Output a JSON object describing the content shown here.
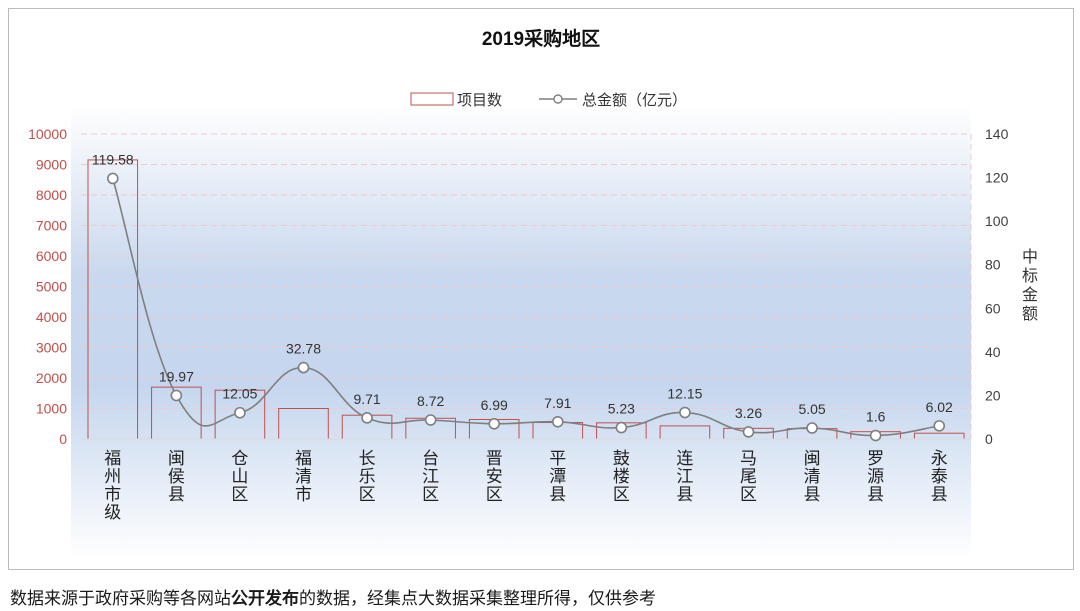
{
  "chart_data": {
    "type": "bar",
    "title": "2019采购地区",
    "categories": [
      "福州市级",
      "闽侯县",
      "仓山区",
      "福清市",
      "长乐区",
      "台江区",
      "晋安区",
      "平潭县",
      "鼓楼区",
      "连江县",
      "马尾区",
      "闽清县",
      "罗源县",
      "永泰县"
    ],
    "series": [
      {
        "name": "项目数",
        "type": "bar",
        "axis": "left",
        "values": [
          9150,
          1700,
          1600,
          1000,
          780,
          680,
          640,
          540,
          530,
          430,
          350,
          340,
          240,
          190
        ]
      },
      {
        "name": "总金额（亿元）",
        "type": "line",
        "axis": "right",
        "smooth": true,
        "marker": "hollow-circle",
        "values": [
          119.58,
          19.97,
          12.05,
          32.78,
          9.71,
          8.72,
          6.99,
          7.91,
          5.23,
          12.15,
          3.26,
          5.05,
          1.6,
          6.02
        ],
        "data_labels": [
          "119.58",
          "19.97",
          "12.05",
          "32.78",
          "9.71",
          "8.72",
          "6.99",
          "7.91",
          "5.23",
          "12.15",
          "3.26",
          "5.05",
          "1.6",
          "6.02"
        ]
      }
    ],
    "y_left": {
      "min": 0,
      "max": 10000,
      "ticks": [
        0,
        1000,
        2000,
        3000,
        4000,
        5000,
        6000,
        7000,
        8000,
        9000,
        10000
      ]
    },
    "y_right": {
      "min": 0,
      "max": 140,
      "ticks": [
        0,
        20,
        40,
        60,
        80,
        100,
        120,
        140
      ],
      "label": "中标金额"
    },
    "legend_position": "top-center",
    "grid": true,
    "colors": {
      "bar_stroke": "#c0504d",
      "line": "#7f7f7f",
      "left_axis_text": "#c0504d",
      "right_axis_text": "#404040",
      "grid": "#f2c9c9",
      "band": "#c5d6ee"
    }
  },
  "footnote": {
    "before": "数据来源于政府采购等各网站",
    "bold": "公开发布",
    "after": "的数据，经集点大数据采集整理所得，仅供参考"
  }
}
